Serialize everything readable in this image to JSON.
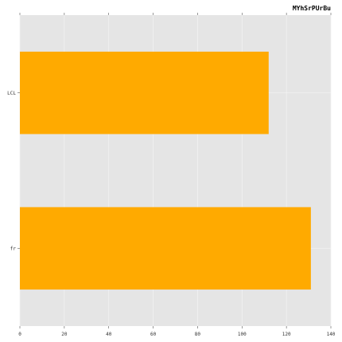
{
  "chart_data": {
    "type": "bar",
    "orientation": "horizontal",
    "title": "MYhSrPUrBu",
    "xlabel": "",
    "ylabel": "",
    "categories": [
      "LCL",
      "fr"
    ],
    "values": [
      112,
      131
    ],
    "xlim": [
      0,
      140
    ],
    "xticks": [
      0,
      20,
      40,
      60,
      80,
      100,
      120,
      140
    ],
    "grid": true,
    "legend": "none",
    "colors": {
      "bar": "#ffaa00",
      "plot_background": "#e5e5e5",
      "grid": "#f2f2f2"
    }
  }
}
